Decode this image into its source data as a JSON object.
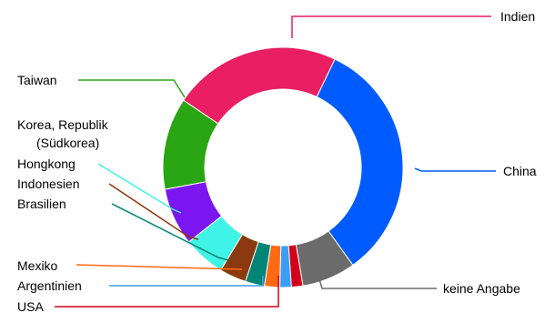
{
  "chart_data": {
    "type": "pie",
    "donut": true,
    "title": "",
    "legend": "none",
    "slices": [
      {
        "label": "Indien",
        "value": 22.0,
        "color": "#e91e63"
      },
      {
        "label": "China",
        "value": 32.0,
        "color": "#005bff"
      },
      {
        "label": "keine Angabe",
        "value": 7.0,
        "color": "#6b6b6b"
      },
      {
        "label": "USA",
        "value": 1.5,
        "color": "#d0021b"
      },
      {
        "label": "Argentinien",
        "value": 1.5,
        "color": "#3b9ef2"
      },
      {
        "label": "Mexiko",
        "value": 2.0,
        "color": "#ff6a13"
      },
      {
        "label": "Brasilien",
        "value": 2.5,
        "color": "#008577"
      },
      {
        "label": "Indonesien",
        "value": 3.5,
        "color": "#8b3a0f"
      },
      {
        "label": "Hongkong",
        "value": 5.5,
        "color": "#3ff4e6"
      },
      {
        "label": "Korea, Republik (Südkorea)",
        "value": 7.5,
        "color": "#7b16f0"
      },
      {
        "label": "Taiwan",
        "value": 12.0,
        "color": "#2aa513"
      }
    ]
  },
  "labels": {
    "indien": "Indien",
    "china": "China",
    "keine_angabe": "keine Angabe",
    "usa": "USA",
    "argentinien": "Argentinien",
    "mexiko": "Mexiko",
    "brasilien": "Brasilien",
    "indonesien": "Indonesien",
    "hongkong": "Hongkong",
    "korea_line1": "Korea, Republik",
    "korea_line2": "(Südkorea)",
    "taiwan": "Taiwan"
  }
}
